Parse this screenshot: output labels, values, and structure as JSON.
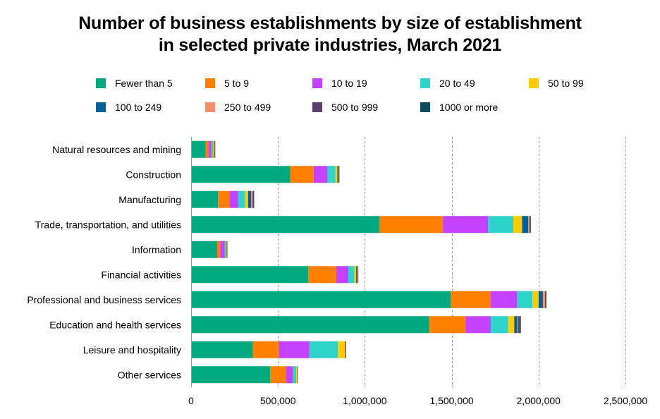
{
  "title_lines": [
    "Number of business establishments by size of establishment",
    "in selected private industries, March 2021"
  ],
  "chart_data": {
    "type": "bar",
    "orientation": "horizontal",
    "stacked": true,
    "title": "Number of business establishments by size of establishment in selected private industries, March 2021",
    "xlabel": "",
    "ylabel": "",
    "xlim": [
      0,
      2500000
    ],
    "x_ticks": [
      0,
      500000,
      1000000,
      1500000,
      2000000,
      2500000
    ],
    "x_tick_labels": [
      "0",
      "500,000",
      "1,000,000",
      "1,500,000",
      "2,000,000",
      "2,500,000"
    ],
    "grid": "vertical dashed",
    "legend_position": "top",
    "categories": [
      "Natural resources and mining",
      "Construction",
      "Manufacturing",
      "Trade, transportation, and utilities",
      "Information",
      "Financial activities",
      "Professional and business services",
      "Education and health services",
      "Leisure and hospitality",
      "Other services"
    ],
    "series": [
      {
        "name": "Fewer than 5",
        "color": "#00a97f",
        "values": [
          84000,
          570000,
          155000,
          1085000,
          150000,
          675000,
          1495000,
          1370000,
          355000,
          455000
        ]
      },
      {
        "name": "5 to 9",
        "color": "#ff7f00",
        "values": [
          18000,
          135000,
          65000,
          365000,
          18000,
          160000,
          230000,
          210000,
          150000,
          90000
        ]
      },
      {
        "name": "10 to 19",
        "color": "#c341ff",
        "values": [
          14000,
          80000,
          50000,
          260000,
          25000,
          70000,
          150000,
          145000,
          175000,
          40000
        ]
      },
      {
        "name": "20 to 49",
        "color": "#2ed3ca",
        "values": [
          10000,
          45000,
          40000,
          145000,
          8000,
          35000,
          90000,
          100000,
          165000,
          20000
        ]
      },
      {
        "name": "50 to 99",
        "color": "#ffcc00",
        "values": [
          5000,
          12000,
          18000,
          50000,
          4000,
          10000,
          35000,
          35000,
          40000,
          5000
        ]
      },
      {
        "name": "100 to 249",
        "color": "#006199",
        "values": [
          5000,
          8000,
          18000,
          35000,
          3000,
          6000,
          25000,
          18000,
          5000,
          3000
        ]
      },
      {
        "name": "250 to 499",
        "color": "#ff8c69",
        "values": [
          2000,
          2000,
          8000,
          8000,
          1000,
          3000,
          12000,
          4000,
          1500,
          1000
        ]
      },
      {
        "name": "500 to 999",
        "color": "#5c3f6b",
        "values": [
          1000,
          1500,
          5000,
          5000,
          800,
          2000,
          5000,
          8000,
          700,
          400
        ]
      },
      {
        "name": "1000 or more",
        "color": "#0b4d5c",
        "values": [
          500,
          800,
          4000,
          3000,
          500,
          1500,
          3000,
          8000,
          500,
          300
        ]
      }
    ]
  }
}
